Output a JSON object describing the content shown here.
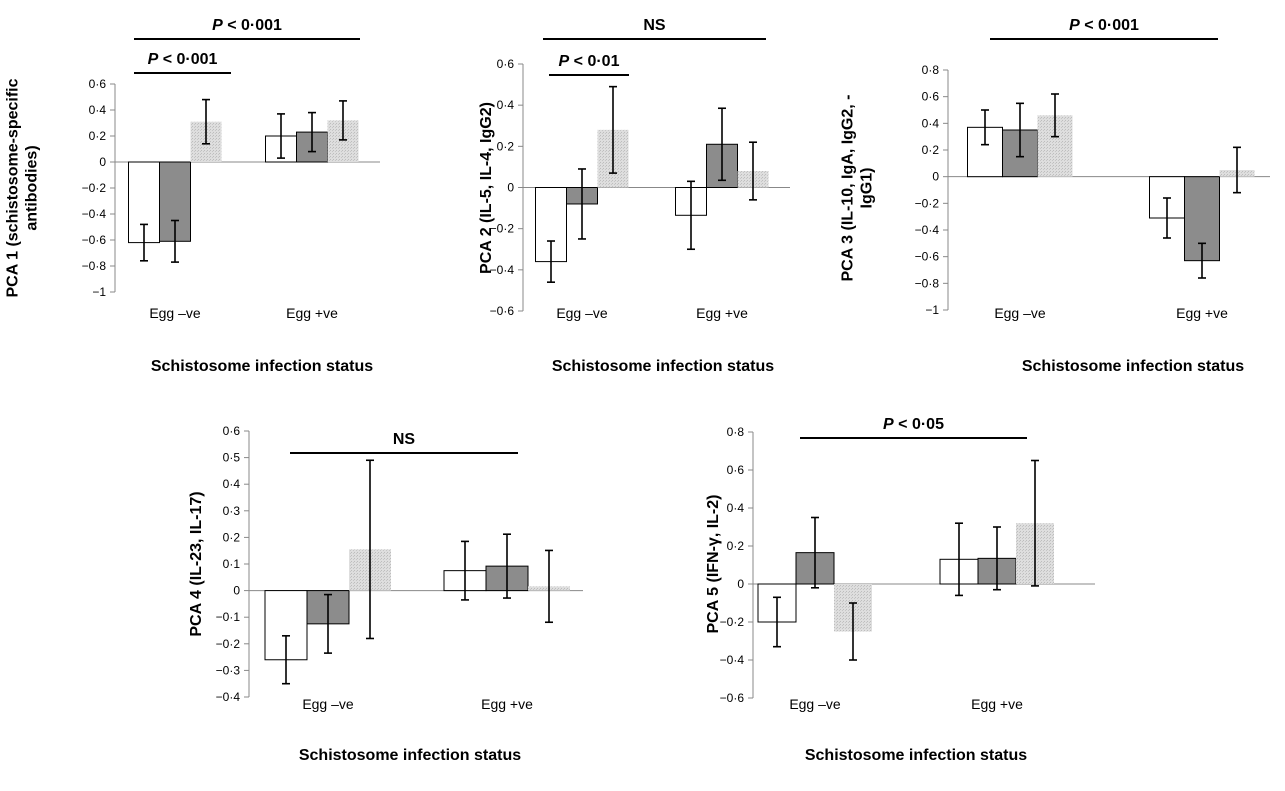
{
  "colors": {
    "group_1": "#ffffff",
    "group_2": "#8c8c8c",
    "group_3": "#d9d9d9",
    "axis": "#888888",
    "bar_border": "#000000"
  },
  "chart_data": [
    {
      "type": "bar",
      "panel": 1,
      "ylabel_lines": [
        "PCA 1 (schistosome-specific",
        "antibodies)"
      ],
      "xlabel": "Schistosome infection status",
      "categories": [
        "Egg –ve",
        "Egg +ve"
      ],
      "ylim": [
        -1,
        0.6
      ],
      "yticks": [
        -1,
        -0.8,
        -0.6,
        -0.4,
        -0.2,
        0,
        0.2,
        0.4,
        0.6
      ],
      "ytick_labels": [
        "−1",
        "−0·8",
        "−0·6",
        "−0·4",
        "−0·2",
        "0",
        "0·2",
        "0·4",
        "0·6"
      ],
      "series": [
        {
          "values": [
            -0.62,
            0.2
          ],
          "error": [
            0.14,
            0.17
          ]
        },
        {
          "values": [
            -0.61,
            0.23
          ],
          "error": [
            0.16,
            0.15
          ]
        },
        {
          "values": [
            0.31,
            0.32
          ],
          "error": [
            0.17,
            0.15
          ]
        }
      ],
      "annotations": [
        {
          "label_prefix": "P",
          "label_rest": " < 0·001",
          "italic_p": true,
          "span": [
            0,
            1
          ],
          "level": 1
        },
        {
          "label_prefix": "P",
          "label_rest": " < 0·001",
          "italic_p": true,
          "span": [
            0,
            0
          ],
          "level": 0
        }
      ]
    },
    {
      "type": "bar",
      "panel": 2,
      "ylabel_lines": [
        "PCA 2 (IL-5, IL-4, IgG2)"
      ],
      "xlabel": "Schistosome infection status",
      "categories": [
        "Egg –ve",
        "Egg +ve"
      ],
      "ylim": [
        -0.6,
        0.6
      ],
      "yticks": [
        -0.6,
        -0.4,
        -0.2,
        0,
        0.2,
        0.4,
        0.6
      ],
      "ytick_labels": [
        "−0·6",
        "−0·4",
        "−0·2",
        "0",
        "0·2",
        "0·4",
        "0·6"
      ],
      "series": [
        {
          "values": [
            -0.36,
            -0.135
          ],
          "error": [
            0.1,
            0.165
          ]
        },
        {
          "values": [
            -0.08,
            0.21
          ],
          "error": [
            0.17,
            0.175
          ]
        },
        {
          "values": [
            0.28,
            0.08
          ],
          "error": [
            0.21,
            0.14
          ]
        }
      ],
      "annotations": [
        {
          "label_prefix": "",
          "label_rest": "NS",
          "italic_p": false,
          "span": [
            0,
            1
          ],
          "level": 1
        },
        {
          "label_prefix": "P",
          "label_rest": " < 0·01",
          "italic_p": true,
          "span": [
            0,
            0
          ],
          "level": 0
        }
      ]
    },
    {
      "type": "bar",
      "panel": 3,
      "ylabel_lines": [
        "PCA 3 (IL-10, IgA, IgG2, -",
        "IgG1)"
      ],
      "xlabel": "Schistosome infection status",
      "categories": [
        "Egg –ve",
        "Egg +ve"
      ],
      "ylim": [
        -1,
        0.8
      ],
      "yticks": [
        -1,
        -0.8,
        -0.6,
        -0.4,
        -0.2,
        0,
        0.2,
        0.4,
        0.6,
        0.8
      ],
      "ytick_labels": [
        "−1",
        "−0·8",
        "−0·6",
        "−0·4",
        "−0·2",
        "0",
        "0·2",
        "0·4",
        "0·6",
        "0·8"
      ],
      "series": [
        {
          "values": [
            0.37,
            -0.31
          ],
          "error": [
            0.13,
            0.15
          ]
        },
        {
          "values": [
            0.35,
            -0.63
          ],
          "error": [
            0.2,
            0.13
          ]
        },
        {
          "values": [
            0.46,
            0.05
          ],
          "error": [
            0.16,
            0.17
          ]
        }
      ],
      "annotations": [
        {
          "label_prefix": "P",
          "label_rest": " < 0·001",
          "italic_p": true,
          "span": [
            0,
            1
          ],
          "level": 1
        }
      ]
    },
    {
      "type": "bar",
      "panel": 4,
      "ylabel_lines": [
        "PCA 4 (IL-23, IL-17)"
      ],
      "xlabel": "Schistosome infection status",
      "categories": [
        "Egg –ve",
        "Egg +ve"
      ],
      "ylim": [
        -0.4,
        0.6
      ],
      "yticks": [
        -0.4,
        -0.3,
        -0.2,
        -0.1,
        0,
        0.1,
        0.2,
        0.3,
        0.4,
        0.5,
        0.6
      ],
      "ytick_labels": [
        "−0·4",
        "−0·3",
        "−0·2",
        "−0·1",
        "0",
        "0·1",
        "0·2",
        "0·3",
        "0·4",
        "0·5",
        "0·6"
      ],
      "series": [
        {
          "values": [
            -0.26,
            0.075
          ],
          "error": [
            0.09,
            0.11
          ]
        },
        {
          "values": [
            -0.125,
            0.092
          ],
          "error": [
            0.11,
            0.12
          ]
        },
        {
          "values": [
            0.155,
            0.016
          ],
          "error": [
            0.335,
            0.135
          ]
        }
      ],
      "annotations": [
        {
          "label_prefix": "",
          "label_rest": "NS",
          "italic_p": false,
          "span": [
            0,
            1
          ],
          "level": 1
        }
      ]
    },
    {
      "type": "bar",
      "panel": 5,
      "ylabel_lines": [
        "PCA 5 (IFN-γ, IL-2)"
      ],
      "xlabel": "Schistosome infection status",
      "categories": [
        "Egg –ve",
        "Egg +ve"
      ],
      "ylim": [
        -0.6,
        0.8
      ],
      "yticks": [
        -0.6,
        -0.4,
        -0.2,
        0,
        0.2,
        0.4,
        0.6,
        0.8
      ],
      "ytick_labels": [
        "−0·6",
        "−0·4",
        "−0·2",
        "0",
        "0·2",
        "0·4",
        "0·6",
        "0·8"
      ],
      "series": [
        {
          "values": [
            -0.2,
            0.13
          ],
          "error": [
            0.13,
            0.19
          ]
        },
        {
          "values": [
            0.165,
            0.135
          ],
          "error": [
            0.185,
            0.165
          ]
        },
        {
          "values": [
            -0.25,
            0.32
          ],
          "error": [
            0.15,
            0.33
          ]
        }
      ],
      "annotations": [
        {
          "label_prefix": "P",
          "label_rest": " < 0·05",
          "italic_p": true,
          "span": [
            0,
            1
          ],
          "level": 1
        }
      ]
    }
  ]
}
